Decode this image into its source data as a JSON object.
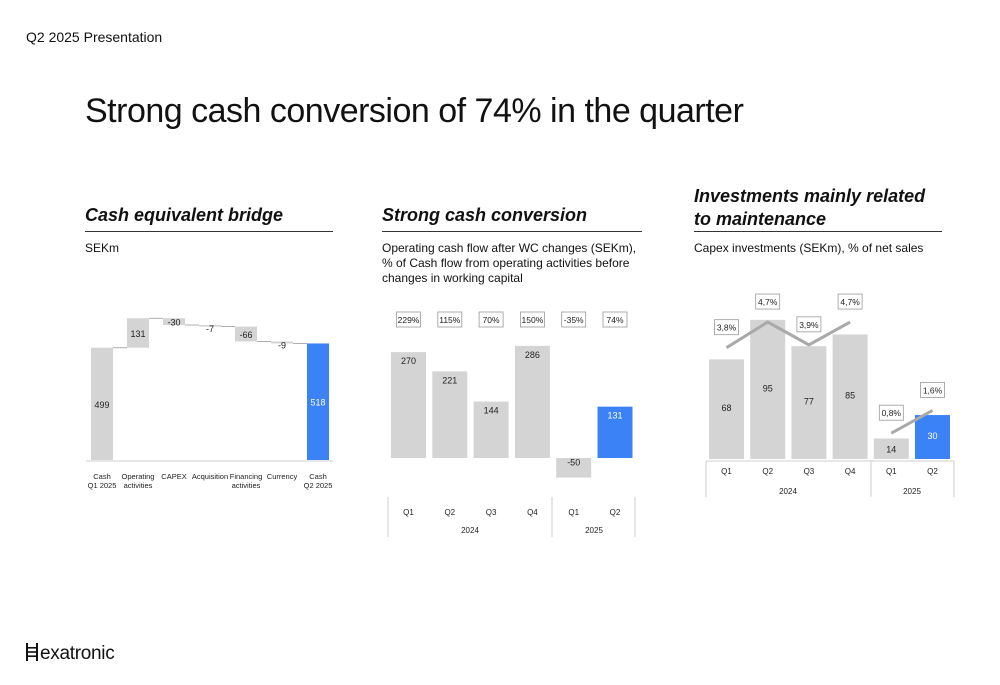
{
  "header": {
    "label": "Q2 2025 Presentation"
  },
  "title": "Strong cash conversion of 74% in the quarter",
  "colors": {
    "gray_bar": "#d4d4d4",
    "blue_bar": "#3b82f6",
    "line": "#a9a9a9",
    "text": "#111111"
  },
  "panels": {
    "bridge": {
      "title": "Cash equivalent bridge",
      "subtitle": "SEKm"
    },
    "conversion": {
      "title": "Strong cash conversion",
      "subtitle": "Operating cash flow after WC changes (SEKm),  % of Cash flow from operating activities before changes in working capital"
    },
    "capex": {
      "title": "Investments mainly related to maintenance",
      "subtitle": "Capex investments (SEKm), % of net sales"
    }
  },
  "chart_data": [
    {
      "type": "bar",
      "subtype": "waterfall",
      "categories": [
        "Cash\nQ1 2025",
        "Operating\nactivities",
        "CAPEX",
        "Acquisition",
        "Financing\nactivities",
        "Currency",
        "Cash\nQ2 2025"
      ],
      "values": [
        499,
        131,
        -30,
        -7,
        -66,
        -9,
        518
      ],
      "labels": [
        "499",
        "131",
        "-30",
        "-7",
        "-66",
        "-9",
        "518"
      ],
      "kinds": [
        "total",
        "delta",
        "delta",
        "delta",
        "delta",
        "delta",
        "total"
      ],
      "highlight": [
        false,
        false,
        false,
        false,
        false,
        false,
        true
      ]
    },
    {
      "type": "bar",
      "categories": [
        "Q1",
        "Q2",
        "Q3",
        "Q4",
        "Q1",
        "Q2"
      ],
      "groups": [
        {
          "label": "2024",
          "count": 4
        },
        {
          "label": "2025",
          "count": 2
        }
      ],
      "values": [
        270,
        221,
        144,
        286,
        -50,
        131
      ],
      "percent_labels": [
        "229%",
        "115%",
        "70%",
        "150%",
        "-35%",
        "74%"
      ],
      "highlight": [
        false,
        false,
        false,
        false,
        false,
        true
      ]
    },
    {
      "type": "bar",
      "categories": [
        "Q1",
        "Q2",
        "Q3",
        "Q4",
        "Q1",
        "Q2"
      ],
      "groups": [
        {
          "label": "2024",
          "count": 4
        },
        {
          "label": "2025",
          "count": 2
        }
      ],
      "values": [
        68,
        95,
        77,
        85,
        14,
        30
      ],
      "line_values": [
        3.8,
        4.7,
        3.9,
        4.7,
        0.8,
        1.6
      ],
      "line_labels": [
        "3,8%",
        "4,7%",
        "3,9%",
        "4,7%",
        "0,8%",
        "1,6%"
      ],
      "highlight": [
        false,
        false,
        false,
        false,
        false,
        true
      ]
    }
  ],
  "logo": {
    "text": "exatronic"
  }
}
